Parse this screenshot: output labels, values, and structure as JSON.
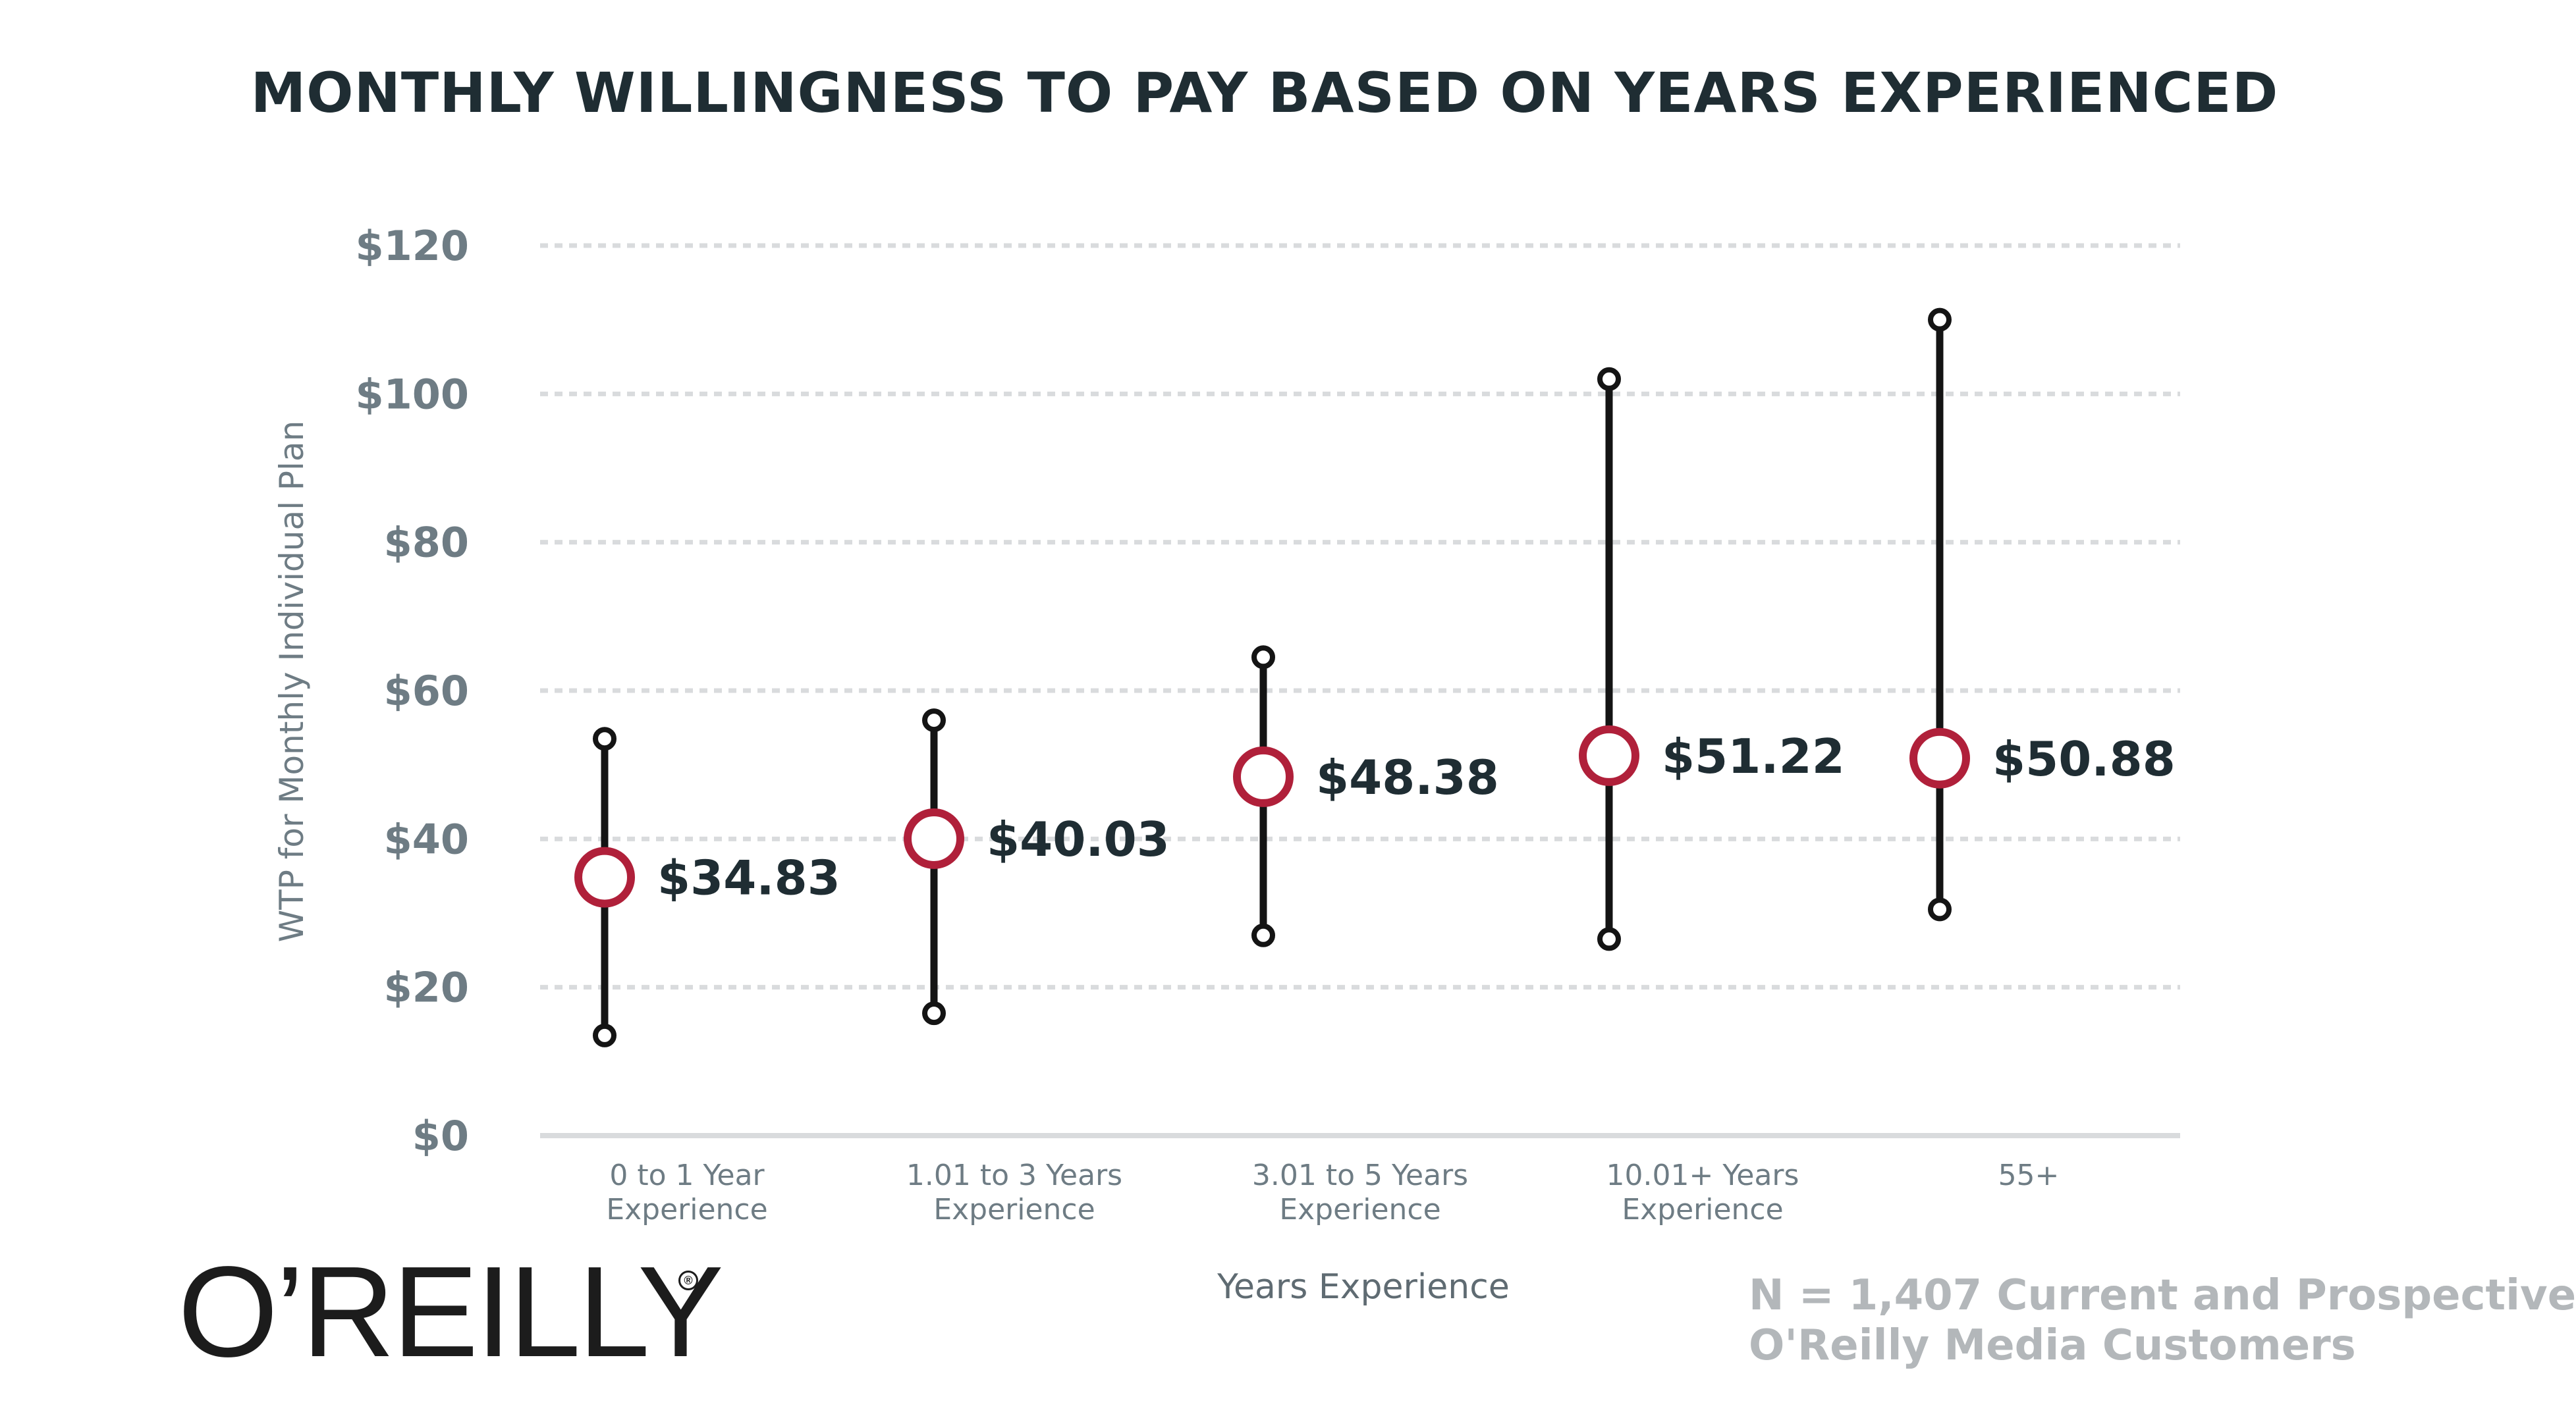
{
  "header": {
    "title": "MONTHLY WILLINGNESS TO PAY BASED ON YEARS EXPERIENCED"
  },
  "branding": {
    "logo_text": "O’REILLY",
    "registered_mark": "®"
  },
  "footnote": {
    "line1": "N = 1,407 Current and Prospective",
    "line2": "O'Reilly Media Customers"
  },
  "colors": {
    "title": "#1f2d33",
    "axis_text": "#6e7c84",
    "whisker": "#141414",
    "marker": "#b0203a",
    "grid": "#d9dbdd",
    "footnote": "#b3b7ba"
  },
  "chart_data": {
    "type": "scatter",
    "subtype": "range-with-mean",
    "title": "MONTHLY WILLINGNESS TO PAY BASED ON YEARS EXPERIENCED",
    "xlabel": "Years Experience",
    "ylabel": "WTP for Monthly Individual Plan",
    "ylim": [
      0,
      120
    ],
    "yticks": [
      0,
      20,
      40,
      60,
      80,
      100,
      120
    ],
    "ytick_labels": [
      "$0",
      "$20",
      "$40",
      "$60",
      "$80",
      "$100",
      "$120"
    ],
    "grid": true,
    "categories": [
      [
        "0 to 1 Year",
        "Experience"
      ],
      [
        "1.01 to 3 Years",
        "Experience"
      ],
      [
        "3.01 to 5 Years",
        "Experience"
      ],
      [
        "10.01+ Years",
        "Experience"
      ],
      [
        "55+"
      ]
    ],
    "low": [
      13.5,
      16.5,
      27,
      26.5,
      30.5
    ],
    "high": [
      53.5,
      56,
      64.5,
      102,
      110
    ],
    "mean": [
      34.83,
      40.03,
      48.38,
      51.22,
      50.88
    ],
    "mean_labels": [
      "$34.83",
      "$40.03",
      "$48.38",
      "$51.22",
      "$50.88"
    ]
  }
}
